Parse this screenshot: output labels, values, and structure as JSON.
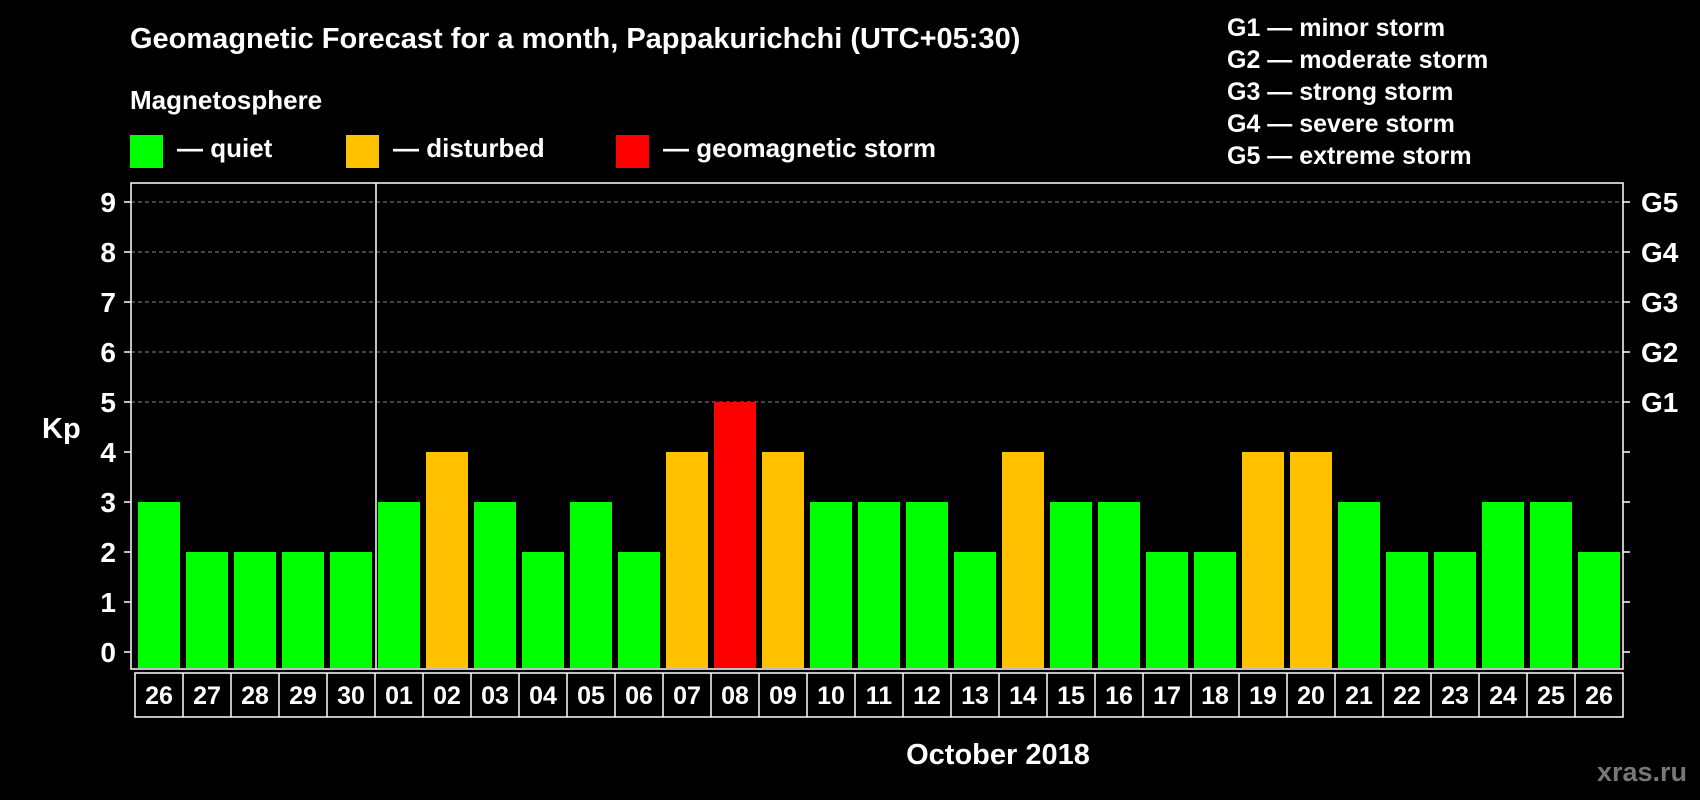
{
  "chart_data": {
    "type": "bar",
    "title": "Geomagnetic Forecast for a month, Pappakurichchi (UTC+05:30)",
    "legend_title": "Magnetosphere",
    "legend": [
      {
        "label": "— quiet",
        "color": "#00ff00"
      },
      {
        "label": "— disturbed",
        "color": "#ffc000"
      },
      {
        "label": "— geomagnetic storm",
        "color": "#ff0000"
      }
    ],
    "storm_scale": [
      "G1 — minor storm",
      "G2 — moderate storm",
      "G3 — strong storm",
      "G4 — severe storm",
      "G5 — extreme storm"
    ],
    "ylabel": "Kp",
    "xlabel": "October 2018",
    "ylim": [
      0,
      9
    ],
    "yticks": [
      "0",
      "1",
      "2",
      "3",
      "4",
      "5",
      "6",
      "7",
      "8",
      "9"
    ],
    "right_ticks": [
      {
        "value": 5,
        "label": "G1"
      },
      {
        "value": 6,
        "label": "G2"
      },
      {
        "value": 7,
        "label": "G3"
      },
      {
        "value": 8,
        "label": "G4"
      },
      {
        "value": 9,
        "label": "G5"
      }
    ],
    "categories": [
      "26",
      "27",
      "28",
      "29",
      "30",
      "01",
      "02",
      "03",
      "04",
      "05",
      "06",
      "07",
      "08",
      "09",
      "10",
      "11",
      "12",
      "13",
      "14",
      "15",
      "16",
      "17",
      "18",
      "19",
      "20",
      "21",
      "22",
      "23",
      "24",
      "25",
      "26"
    ],
    "values": [
      3,
      2,
      2,
      2,
      2,
      3,
      4,
      3,
      2,
      3,
      2,
      4,
      5,
      4,
      3,
      3,
      3,
      2,
      4,
      3,
      3,
      2,
      2,
      4,
      4,
      3,
      2,
      2,
      3,
      3,
      2
    ],
    "month_divider_after_index": 4,
    "color_thresholds": {
      "quiet_max": 3,
      "disturbed_max": 4
    },
    "grid": "dashed, levels 5-9"
  },
  "watermark": "xras.ru"
}
